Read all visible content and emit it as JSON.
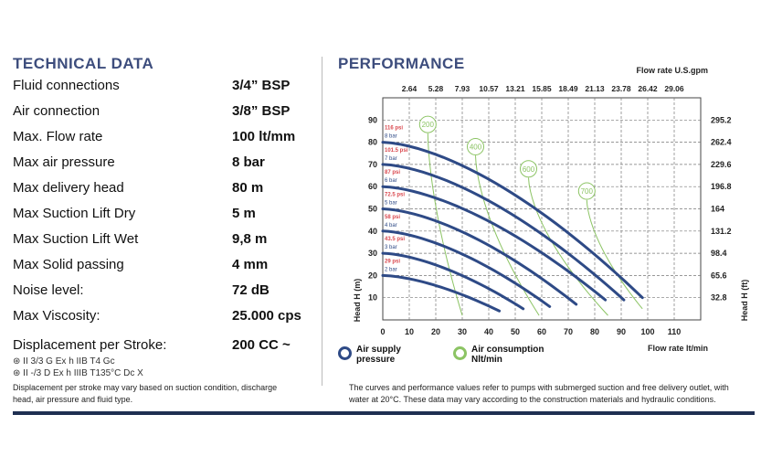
{
  "technical": {
    "title": "TECHNICAL DATA",
    "rows": [
      {
        "label": "Fluid connections",
        "value": "3/4” BSP"
      },
      {
        "label": "Air connection",
        "value": "3/8” BSP"
      },
      {
        "label": "Max. Flow rate",
        "value": "100 lt/mm"
      },
      {
        "label": "Max air pressure",
        "value": "8 bar"
      },
      {
        "label": "Max delivery head",
        "value": "80 m"
      },
      {
        "label": "Max Suction Lift Dry",
        "value": "5 m"
      },
      {
        "label": "Max Suction Lift Wet",
        "value": "9,8 m"
      },
      {
        "label": "Max Solid passing",
        "value": "4 mm"
      },
      {
        "label": "Noise level:",
        "value": "72 dB"
      },
      {
        "label": "Max Viscosity:",
        "value": "25.000 cps"
      },
      {
        "label": "Displacement per Stroke:",
        "value": "200 CC ~"
      }
    ],
    "atex": [
      "II 3/3 G Ex h IIB T4 Gc",
      "II -/3 D Ex h IIIB T135°C Dc X"
    ],
    "note": "Displacement per stroke may vary based on suction condition, discharge head, air pressure and fluid type."
  },
  "performance": {
    "title": "PERFORMANCE",
    "note": "The curves and performance values refer to pumps with submerged suction and free delivery outlet, with water at 20°C. These data may vary according to the construction materials and hydraulic conditions.",
    "legend": [
      {
        "label1": "Air supply",
        "label2": "pressure",
        "color": "#2e4a86"
      },
      {
        "label1": "Air consumption",
        "label2": "Nlt/min",
        "color": "#8cc464"
      }
    ]
  },
  "chart_data": {
    "type": "line",
    "xlabel": "Flow rate  lt/min",
    "ylabel": "Head H (m)",
    "x2label": "Flow rate U.S.gpm",
    "y2label": "Head H (ft)",
    "xlim": [
      0,
      120
    ],
    "ylim": [
      0,
      100
    ],
    "xticks": [
      0,
      10,
      20,
      30,
      40,
      50,
      60,
      70,
      80,
      90,
      100,
      110
    ],
    "yticks": [
      10,
      20,
      30,
      40,
      50,
      60,
      70,
      80,
      90
    ],
    "x2ticks": [
      "2.64",
      "5.28",
      "7.93",
      "10.57",
      "13.21",
      "15.85",
      "18.49",
      "21.13",
      "23.78",
      "26.42",
      "29.06"
    ],
    "y2ticks": [
      "32.8",
      "65.6",
      "98.4",
      "131.2",
      "164",
      "196.8",
      "229.6",
      "262.4",
      "295.2"
    ],
    "grid": true,
    "pressure_series": [
      {
        "bar": "8 bar",
        "psi": "116 psi",
        "points": [
          [
            0,
            80
          ],
          [
            98,
            10
          ]
        ]
      },
      {
        "bar": "7 bar",
        "psi": "101.5 psi",
        "points": [
          [
            0,
            70
          ],
          [
            91,
            9
          ]
        ]
      },
      {
        "bar": "6 bar",
        "psi": "87 psi",
        "points": [
          [
            0,
            60
          ],
          [
            84,
            9
          ]
        ]
      },
      {
        "bar": "5 bar",
        "psi": "72.5 psi",
        "points": [
          [
            0,
            50
          ],
          [
            73,
            7
          ]
        ]
      },
      {
        "bar": "4 bar",
        "psi": "58 psi",
        "points": [
          [
            0,
            40
          ],
          [
            63,
            6
          ]
        ]
      },
      {
        "bar": "3 bar",
        "psi": "43.5 psi",
        "points": [
          [
            0,
            30
          ],
          [
            53,
            5
          ]
        ]
      },
      {
        "bar": "2 bar",
        "psi": "29 psi",
        "points": [
          [
            0,
            20
          ],
          [
            44,
            4
          ]
        ]
      }
    ],
    "air_series": [
      {
        "name": "200",
        "label_at": [
          17,
          88
        ],
        "points": [
          [
            17,
            84
          ],
          [
            30,
            2
          ]
        ]
      },
      {
        "name": "400",
        "label_at": [
          35,
          78
        ],
        "points": [
          [
            35,
            74
          ],
          [
            59,
            2
          ]
        ]
      },
      {
        "name": "600",
        "label_at": [
          55,
          68
        ],
        "points": [
          [
            55,
            64
          ],
          [
            85,
            2
          ]
        ]
      },
      {
        "name": "700",
        "label_at": [
          77,
          58
        ],
        "points": [
          [
            77,
            54
          ],
          [
            98,
            5
          ]
        ]
      }
    ],
    "colors": {
      "pressure": "#2e4a86",
      "air": "#8cc464",
      "psi": "#d9484e"
    }
  }
}
